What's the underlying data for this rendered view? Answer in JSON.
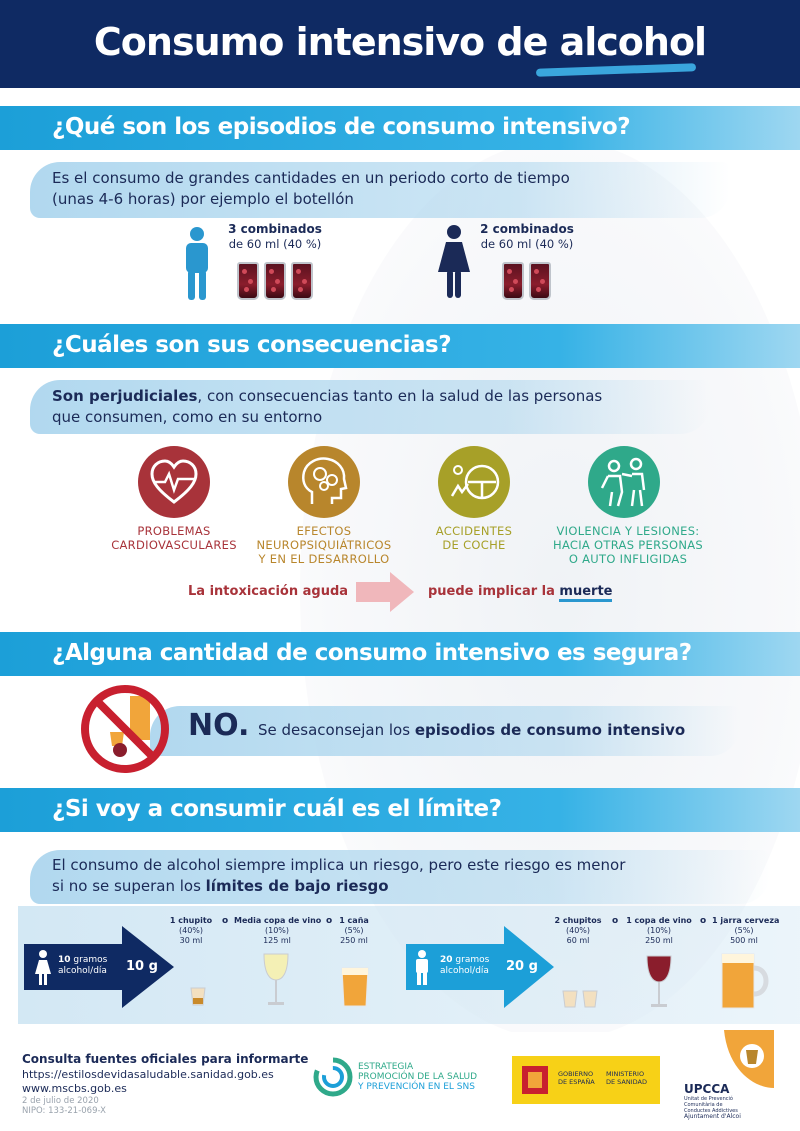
{
  "header": {
    "title": "Consumo intensivo de alcohol"
  },
  "section1": {
    "title": "¿Qué son los episodios de consumo intensivo?",
    "text_line1": "Es el consumo de grandes cantidades en un periodo corto de tiempo",
    "text_line2": "(unas 4-6 horas) por ejemplo el botellón",
    "man": {
      "count": "3 combinados",
      "detail": "de 60 ml (40 %)"
    },
    "woman": {
      "count": "2 combinados",
      "detail": "de 60 ml (40 %)"
    }
  },
  "section2": {
    "title": "¿Cuáles son sus consecuencias?",
    "lead_bold": "Son perjudiciales",
    "lead_rest": ", con consecuencias tanto en la salud de las personas",
    "lead_line2": "que consumen, como en su entorno",
    "items": [
      {
        "line1": "PROBLEMAS",
        "line2": "CARDIOVASCULARES",
        "line3": "",
        "color": "#a8333a"
      },
      {
        "line1": "EFECTOS",
        "line2": "NEUROPSIQUIÁTRICOS",
        "line3": "Y EN EL DESARROLLO",
        "color": "#b8862c"
      },
      {
        "line1": "ACCIDENTES",
        "line2": "DE COCHE",
        "line3": "",
        "color": "#a7a028"
      },
      {
        "line1": "VIOLENCIA Y LESIONES:",
        "line2": "HACIA OTRAS PERSONAS",
        "line3": "O AUTO INFLIGIDAS",
        "color": "#2fa98a"
      }
    ],
    "intox_left": "La intoxicación aguda",
    "intox_right_a": "puede implicar la ",
    "intox_right_b": "muerte"
  },
  "section3": {
    "title": "¿Alguna cantidad de consumo intensivo es segura?",
    "no": "NO.",
    "text_a": "Se desaconsejan los ",
    "text_b": "episodios de consumo intensivo"
  },
  "section4": {
    "title": "¿Si voy a consumir cuál es el límite?",
    "text_line1": "El consumo de alcohol siempre implica un riesgo, pero este riesgo es menor",
    "text_line2a": "si no se superan los ",
    "text_line2b": "límites de bajo riesgo",
    "woman_limit": {
      "grams": "10",
      "grams_unit": "gramos",
      "per_day": "alcohol/día",
      "value": "10 g"
    },
    "man_limit": {
      "grams": "20",
      "grams_unit": "gramos",
      "per_day": "alcohol/día",
      "value": "20 g"
    },
    "woman_drinks": [
      {
        "name": "1 chupito",
        "pct": "(40%)",
        "ml": "30 ml"
      },
      {
        "name": "Media copa de vino",
        "pct": "(10%)",
        "ml": "125 ml"
      },
      {
        "name": "1 caña",
        "pct": "(5%)",
        "ml": "250 ml"
      }
    ],
    "man_drinks": [
      {
        "name": "2 chupitos",
        "pct": "(40%)",
        "ml": "60 ml"
      },
      {
        "name": "1 copa de vino",
        "pct": "(10%)",
        "ml": "250 ml"
      },
      {
        "name": "1 jarra cerveza",
        "pct": "(5%)",
        "ml": "500 ml"
      }
    ],
    "or": "o"
  },
  "footer": {
    "title": "Consulta fuentes oficiales para informarte",
    "link1": "https://estilosdevidasaludable.sanidad.gob.es",
    "link2": "www.mscbs.gob.es",
    "date": "2 de julio de 2020",
    "nipo": "NIPO: 133-21-069-X",
    "strategy_line1": "ESTRATEGIA",
    "strategy_line2": "PROMOCIÓN DE LA SALUD",
    "strategy_line3": "Y PREVENCIÓN EN EL SNS",
    "gov1": "GOBIERNO",
    "gov2": "DE ESPAÑA",
    "min1": "MINISTERIO",
    "min2": "DE SANIDAD",
    "upcca": "UPCCA",
    "upcca_sub1": "Unitat de Prevenció",
    "upcca_sub2": "Comunitària de",
    "upcca_sub3": "Conductes Addictives",
    "upcca_sub4": "Ajuntament d'Alcoi"
  }
}
